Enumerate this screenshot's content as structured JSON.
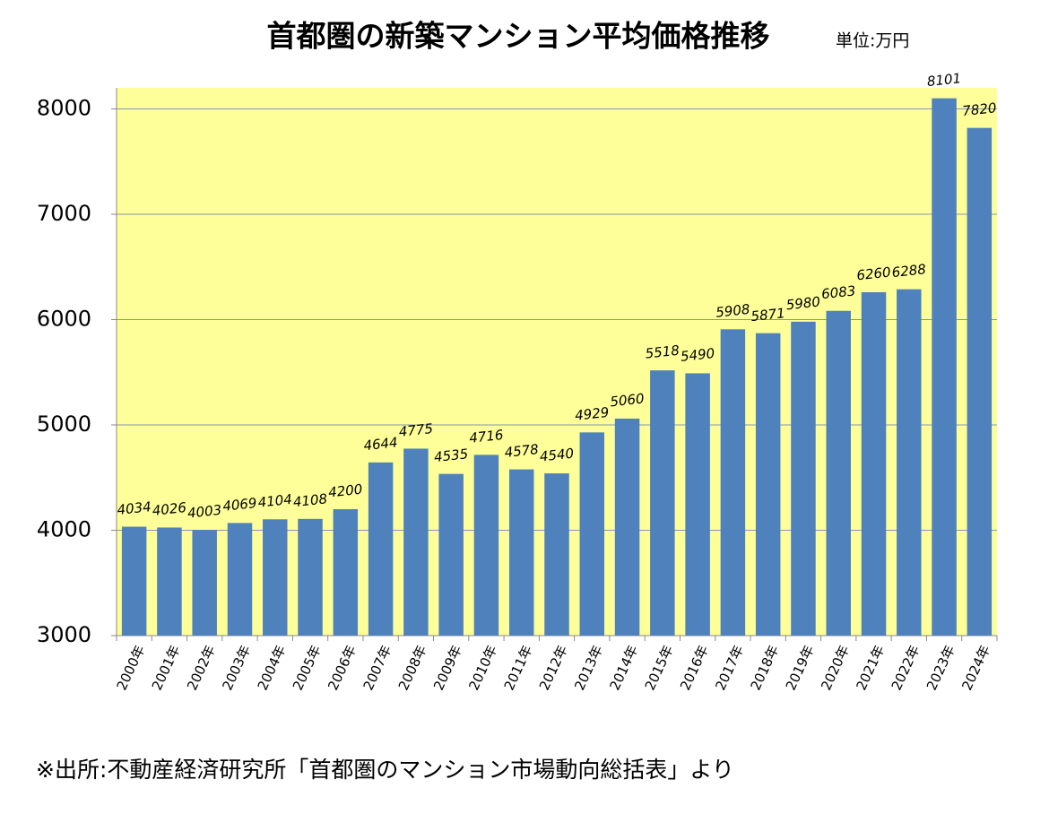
{
  "chart_data": {
    "type": "bar",
    "title": "首都圏の新築マンション平均価格推移",
    "subtitle": "単位:万円",
    "footnote": "※出所:不動産経済研究所「首都圏のマンション市場動向総括表」より",
    "categories": [
      "2000年",
      "2001年",
      "2002年",
      "2003年",
      "2004年",
      "2005年",
      "2006年",
      "2007年",
      "2008年",
      "2009年",
      "2010年",
      "2011年",
      "2012年",
      "2013年",
      "2014年",
      "2015年",
      "2016年",
      "2017年",
      "2018年",
      "2019年",
      "2020年",
      "2021年",
      "2022年",
      "2023年",
      "2024年"
    ],
    "values": [
      4034,
      4026,
      4003,
      4069,
      4104,
      4108,
      4200,
      4644,
      4775,
      4535,
      4716,
      4578,
      4540,
      4929,
      5060,
      5518,
      5490,
      5908,
      5871,
      5980,
      6083,
      6260,
      6288,
      8101,
      7820
    ],
    "color": "#4f81bd",
    "background": "#ffff99",
    "ylim": [
      3000,
      8200
    ],
    "yticks": [
      3000,
      4000,
      5000,
      6000,
      7000,
      8000
    ],
    "grid": true
  }
}
